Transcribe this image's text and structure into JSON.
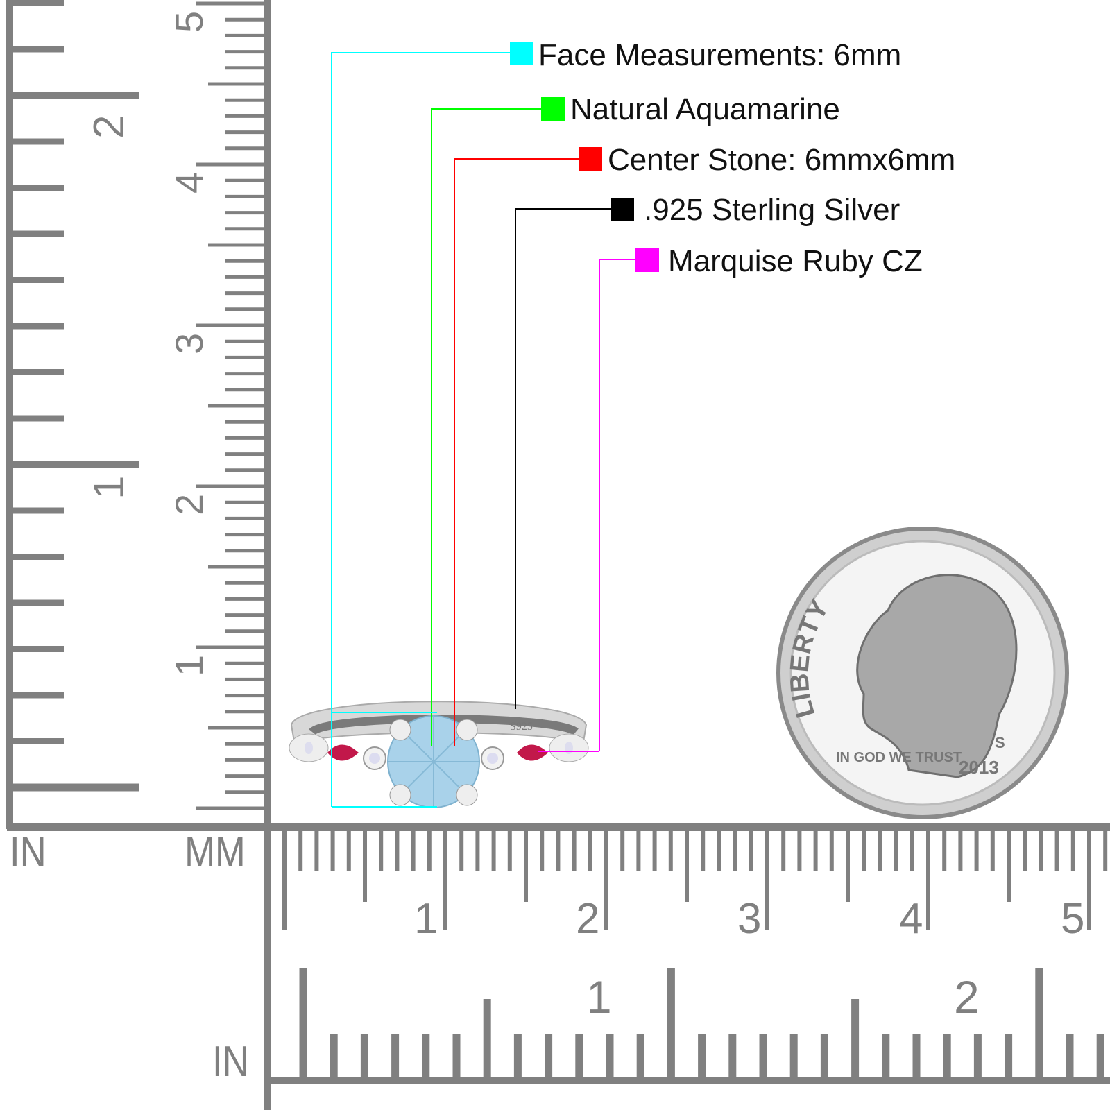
{
  "legend": [
    {
      "label": "Face Measurements: 6mm",
      "color": "#00ffff"
    },
    {
      "label": "Natural Aquamarine",
      "color": "#00ff00"
    },
    {
      "label": "Center Stone: 6mmx6mm",
      "color": "#ff0000"
    },
    {
      "label": ".925 Sterling Silver",
      "color": "#000000"
    },
    {
      "label": "Marquise Ruby CZ",
      "color": "#ff00ff"
    }
  ],
  "rulers": {
    "left_in_label": "IN",
    "left_mm_label": "MM",
    "bottom_in_label": "IN",
    "vertical_mm_numbers": [
      "1",
      "2",
      "3",
      "4",
      "5"
    ],
    "vertical_in_numbers": [
      "1",
      "2"
    ],
    "horizontal_mm_numbers": [
      "1",
      "2",
      "3",
      "4",
      "5"
    ],
    "horizontal_in_numbers": [
      "1",
      "2"
    ],
    "ruler_color": "#808080"
  },
  "ring": {
    "stamp": "S925",
    "center_stone_color": "#a9d2ea",
    "side_stone_color": "#c2184a"
  },
  "coin": {
    "legend": "LIBERTY",
    "motto": "IN GOD WE TRUST",
    "year": "2013",
    "mint_mark": "S"
  }
}
